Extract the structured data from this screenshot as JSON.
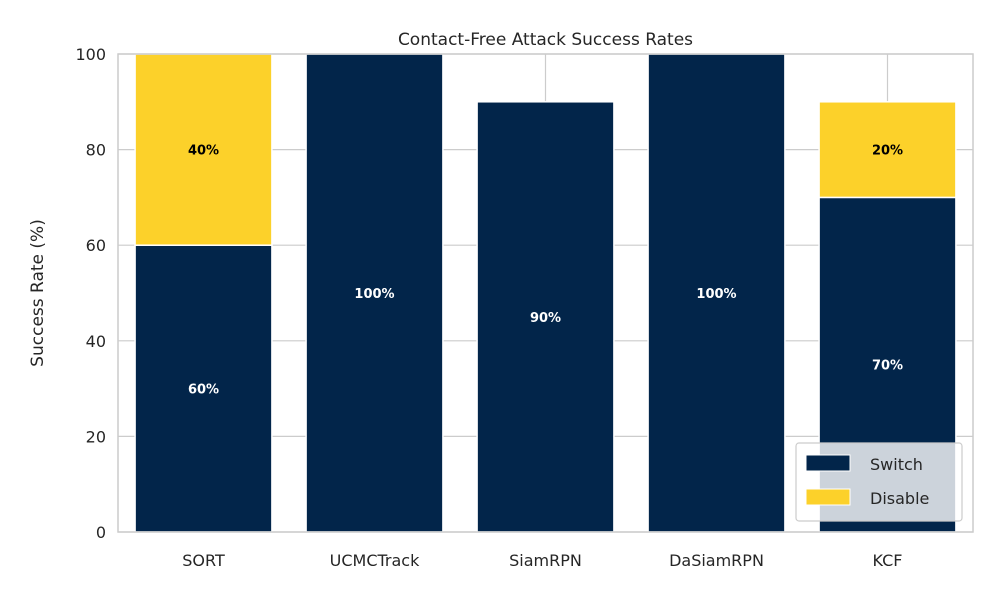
{
  "chart_data": {
    "type": "bar",
    "stacked": true,
    "title": "Contact-Free Attack Success Rates",
    "xlabel": "",
    "ylabel": "Success Rate (%)",
    "ylim": [
      0,
      100
    ],
    "yticks": [
      "0",
      "20",
      "40",
      "60",
      "80",
      "100"
    ],
    "grid": true,
    "legend_position": "lower-right",
    "categories": [
      "SORT",
      "UCMCTrack",
      "SiamRPN",
      "DaSiamRPN",
      "KCF"
    ],
    "series": [
      {
        "name": "Switch",
        "color": "#02254a",
        "label_color": "#ffffff",
        "values": [
          60,
          100,
          90,
          100,
          70
        ],
        "labels": [
          "60%",
          "100%",
          "90%",
          "100%",
          "70%"
        ]
      },
      {
        "name": "Disable",
        "color": "#fcd12a",
        "label_color": "#000000",
        "values": [
          40,
          0,
          0,
          0,
          20
        ],
        "labels": [
          "40%",
          "",
          "",
          "",
          "20%"
        ]
      }
    ]
  }
}
